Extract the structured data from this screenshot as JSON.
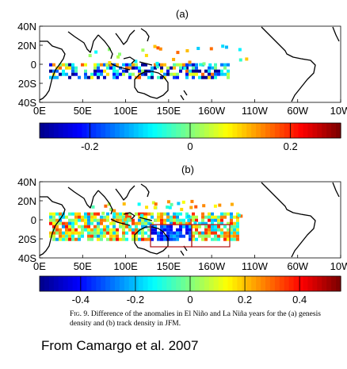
{
  "panels": [
    {
      "label": "(a)",
      "lat_ticks": [
        "40N",
        "20N",
        "0",
        "20S",
        "40S"
      ],
      "lon_ticks": [
        "0E",
        "50E",
        "100E",
        "150E",
        "160W",
        "110W",
        "60W",
        "10W"
      ],
      "colorbar_ticks": [
        "-0.2",
        "0",
        "0.2"
      ],
      "colorbar_values": [
        -0.2,
        0,
        0.2
      ],
      "colorbar_range": [
        -0.3,
        0.3
      ]
    },
    {
      "label": "(b)",
      "lat_ticks": [
        "40N",
        "20N",
        "0",
        "20S",
        "40S"
      ],
      "lon_ticks": [
        "0E",
        "50E",
        "100E",
        "150E",
        "160W",
        "110W",
        "60W",
        "10W"
      ],
      "colorbar_ticks": [
        "-0.4",
        "-0.2",
        "0",
        "0.2",
        "0.4"
      ],
      "colorbar_values": [
        -0.4,
        -0.2,
        0,
        0.2,
        0.4
      ],
      "colorbar_range": [
        -0.55,
        0.55
      ]
    }
  ],
  "caption": {
    "figure_number": "Fig. 9.",
    "text": "Difference of the anomalies in El Niño and La Niña years for the (a) genesis density and (b) track density in JFM."
  },
  "credit": "From Camargo et al. 2007",
  "colors": {
    "colormap": [
      "#00008f",
      "#0000ff",
      "#0080ff",
      "#00ffff",
      "#80ff80",
      "#ffff00",
      "#ff8000",
      "#ff0000",
      "#800000"
    ],
    "land_outline": "#000000",
    "box": "#b01010"
  }
}
